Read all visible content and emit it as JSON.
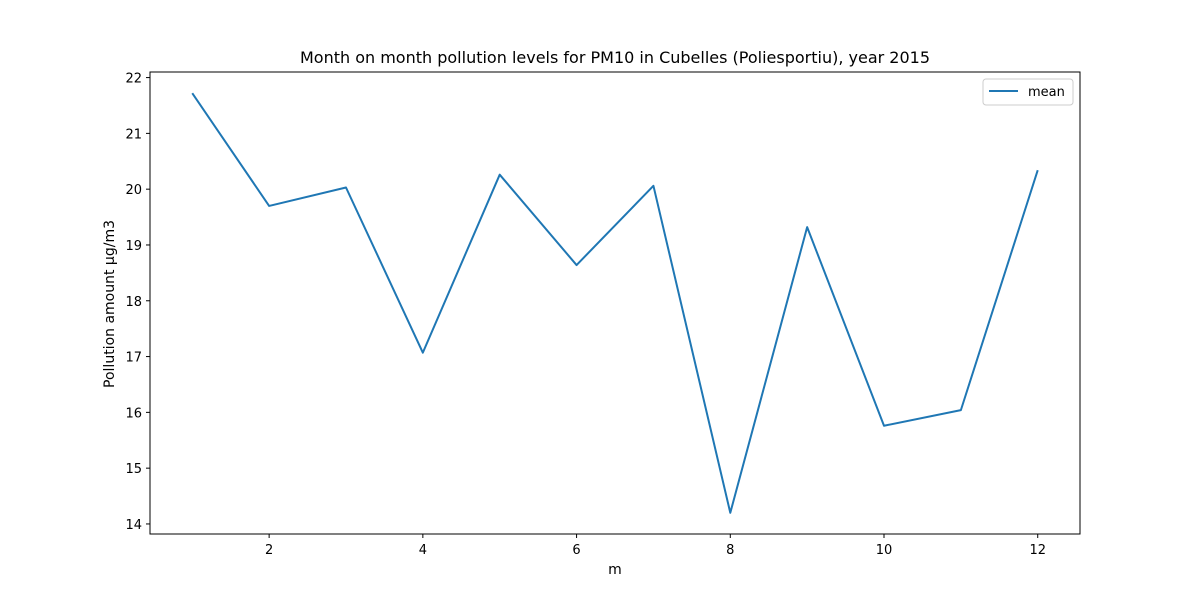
{
  "chart_data": {
    "type": "line",
    "title": "Month on month pollution levels for PM10 in Cubelles (Poliesportiu), year 2015",
    "xlabel": "m",
    "ylabel": "Pollution amount µg/m3",
    "x": [
      1,
      2,
      3,
      4,
      5,
      6,
      7,
      8,
      9,
      10,
      11,
      12
    ],
    "series": [
      {
        "name": "mean",
        "color": "#1f77b4",
        "values": [
          21.72,
          19.7,
          20.03,
          17.07,
          20.26,
          18.64,
          20.06,
          14.2,
          19.32,
          15.76,
          16.04,
          20.34
        ]
      }
    ],
    "xlim": [
      0.45,
      12.55
    ],
    "ylim": [
      13.82,
      22.1
    ],
    "xticks": [
      2,
      4,
      6,
      8,
      10,
      12
    ],
    "yticks": [
      14,
      15,
      16,
      17,
      18,
      19,
      20,
      21,
      22
    ],
    "grid": false,
    "legend_position": "top-right"
  }
}
